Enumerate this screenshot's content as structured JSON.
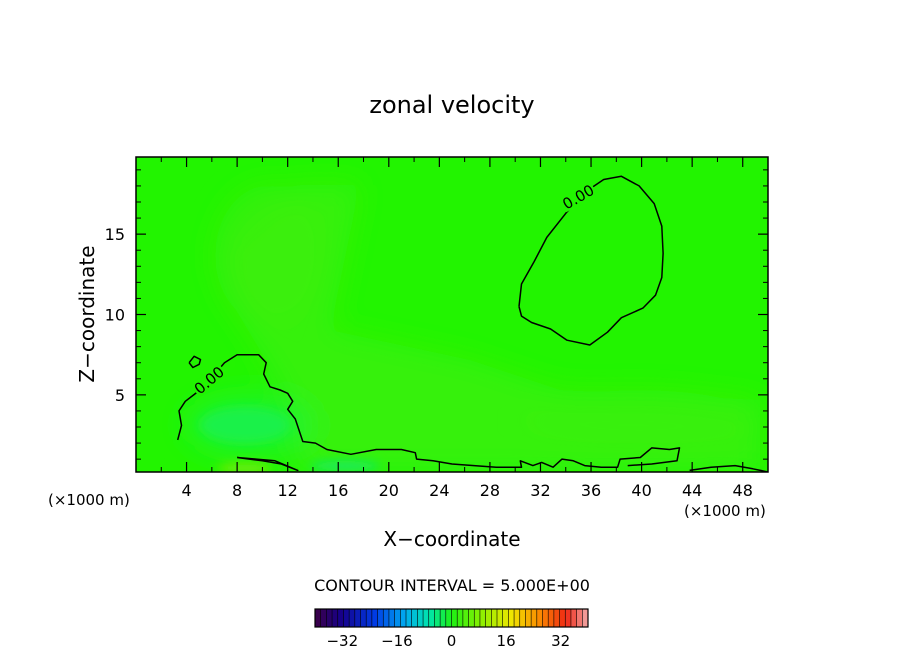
{
  "chart_data": {
    "type": "contour",
    "title": "zonal velocity",
    "xlabel": "X−coordinate",
    "ylabel": "Z−coordinate",
    "x_unit_left": "(×1000 m)",
    "x_unit_right": "(×1000 m)",
    "xlim": [
      0,
      50
    ],
    "ylim": [
      0.2,
      19.8
    ],
    "xticks": [
      4,
      8,
      12,
      16,
      20,
      24,
      28,
      32,
      36,
      40,
      44,
      48
    ],
    "xtick_labels": [
      "4",
      "8",
      "12",
      "16",
      "20",
      "24",
      "28",
      "32",
      "36",
      "40",
      "44",
      "48"
    ],
    "yticks": [
      5,
      10,
      15
    ],
    "ytick_labels": [
      "5",
      "10",
      "15"
    ],
    "contour_interval_text": "CONTOUR INTERVAL = 5.000E+00",
    "contour_labels": [
      {
        "text": "0.00",
        "x": 35.0,
        "z": 17.3
      },
      {
        "text": "0.00",
        "x": 5.8,
        "z": 5.9
      }
    ],
    "contours": [
      {
        "level": 0,
        "points": [
          [
            30.3,
            10.5
          ],
          [
            30.5,
            11.9
          ],
          [
            31.5,
            13.3
          ],
          [
            32.5,
            14.8
          ],
          [
            34.0,
            16.3
          ],
          [
            35.5,
            17.6
          ],
          [
            37.0,
            18.4
          ],
          [
            38.4,
            18.6
          ],
          [
            39.8,
            18.0
          ],
          [
            41.0,
            16.9
          ],
          [
            41.6,
            15.5
          ],
          [
            41.7,
            13.8
          ],
          [
            41.6,
            12.3
          ],
          [
            41.1,
            11.2
          ],
          [
            40.1,
            10.4
          ],
          [
            38.4,
            9.8
          ],
          [
            37.3,
            8.9
          ],
          [
            35.9,
            8.1
          ],
          [
            34.1,
            8.4
          ],
          [
            32.8,
            9.1
          ],
          [
            31.3,
            9.5
          ],
          [
            30.5,
            9.9
          ],
          [
            30.3,
            10.5
          ]
        ]
      },
      {
        "level": 0,
        "points": [
          [
            3.3,
            2.2
          ],
          [
            3.6,
            3.1
          ],
          [
            3.4,
            4.0
          ],
          [
            3.9,
            4.6
          ],
          [
            4.9,
            5.2
          ],
          [
            5.8,
            5.9
          ],
          [
            7.0,
            7.0
          ],
          [
            8.0,
            7.5
          ],
          [
            9.7,
            7.5
          ],
          [
            10.3,
            7.0
          ],
          [
            10.1,
            6.3
          ],
          [
            10.6,
            5.5
          ],
          [
            11.4,
            5.3
          ],
          [
            12.0,
            5.1
          ],
          [
            12.4,
            4.6
          ],
          [
            12.0,
            4.1
          ],
          [
            12.6,
            3.5
          ],
          [
            13.2,
            2.1
          ],
          [
            14.2,
            2.0
          ],
          [
            15.1,
            1.6
          ],
          [
            17.0,
            1.3
          ],
          [
            19.0,
            1.6
          ],
          [
            21.0,
            1.6
          ],
          [
            22.1,
            1.4
          ],
          [
            22.2,
            1.0
          ],
          [
            23.5,
            0.9
          ],
          [
            25.0,
            0.7
          ],
          [
            28.5,
            0.5
          ],
          [
            30.5,
            0.5
          ],
          [
            30.4,
            0.9
          ],
          [
            31.4,
            0.6
          ],
          [
            32.1,
            0.8
          ],
          [
            33.0,
            0.5
          ],
          [
            33.7,
            1.0
          ],
          [
            34.6,
            0.9
          ],
          [
            35.5,
            0.6
          ],
          [
            36.8,
            0.5
          ],
          [
            38.1,
            0.5
          ],
          [
            38.3,
            1.0
          ],
          [
            39.9,
            1.1
          ],
          [
            40.8,
            1.7
          ],
          [
            42.2,
            1.6
          ],
          [
            43.0,
            1.7
          ],
          [
            42.8,
            0.9
          ],
          [
            40.8,
            0.7
          ],
          [
            38.9,
            0.6
          ]
        ]
      },
      {
        "level": 0,
        "points": [
          [
            4.2,
            7.0
          ],
          [
            4.6,
            7.4
          ],
          [
            5.1,
            7.2
          ],
          [
            5.0,
            6.9
          ],
          [
            4.5,
            6.7
          ],
          [
            4.2,
            7.0
          ]
        ]
      },
      {
        "level": 0,
        "points": [
          [
            8.0,
            1.1
          ],
          [
            10.0,
            0.9
          ],
          [
            11.5,
            0.7
          ],
          [
            12.8,
            0.3
          ],
          [
            11.0,
            0.9
          ],
          [
            9.5,
            1.0
          ],
          [
            8.0,
            1.1
          ]
        ]
      },
      {
        "level": 0,
        "points": [
          [
            43.8,
            0.3
          ],
          [
            45.5,
            0.5
          ],
          [
            47.4,
            0.6
          ],
          [
            48.8,
            0.4
          ],
          [
            50.0,
            0.2
          ]
        ]
      }
    ],
    "colorbar": {
      "ticks": [
        -32,
        -16,
        0,
        16,
        32
      ],
      "tick_labels": [
        "−32",
        "−16",
        "0",
        "16",
        "32"
      ],
      "range": [
        -40,
        40
      ]
    },
    "colors": {
      "field_base": "#22f400",
      "contour": "#000000",
      "frame": "#000000"
    }
  }
}
